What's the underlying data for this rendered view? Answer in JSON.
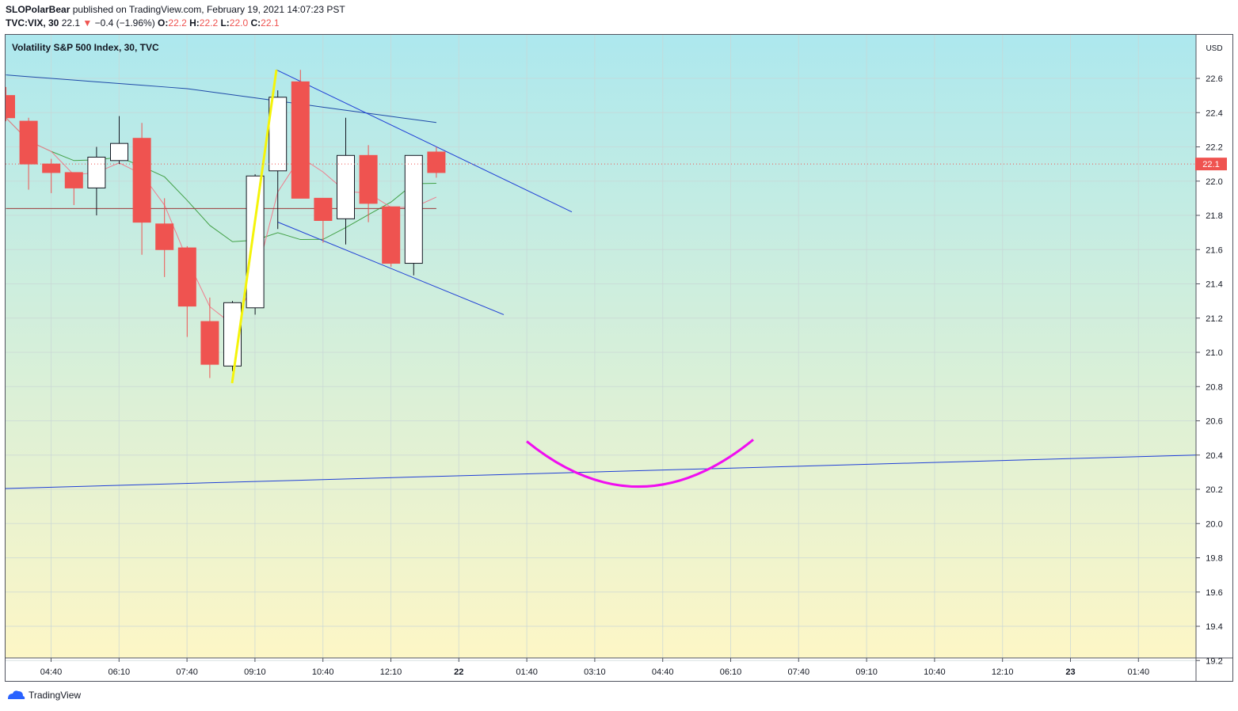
{
  "header": {
    "author": "SLOPolarBear",
    "published_text": "published on TradingView.com, February 19, 2021 14:07:23 PST",
    "symbol": "TVC:VIX, 30",
    "last": "22.1",
    "change": "−0.4 (−1.96%)",
    "o_label": "O:",
    "o": "22.2",
    "h_label": "H:",
    "h": "22.2",
    "l_label": "L:",
    "l": "22.0",
    "c_label": "C:",
    "c": "22.1"
  },
  "chart_title": "Volatility S&P 500 Index, 30, TVC",
  "currency": "USD",
  "last_price_label": "22.1",
  "footer": {
    "brand": "TradingView"
  },
  "colors": {
    "bg_top": "#ade8ee",
    "bg_bottom": "#fdf6c6",
    "down": "#ef5350",
    "up_body": "#ffffff",
    "wick": "#131722",
    "channel": "#1f3fd6",
    "yellow": "#f4f40a",
    "magenta": "#f00ef0",
    "ma_blue": "#1f4aa8",
    "ma_green": "#43a047",
    "ma_pink": "#ef7d8d",
    "ma_dark": "#9c3a3a"
  },
  "chart_data": {
    "type": "candlestick",
    "title": "Volatility S&P 500 Index, 30, TVC",
    "y_axis": {
      "min": 19.0,
      "max": 22.8,
      "ticks": [
        19.2,
        19.4,
        19.6,
        19.8,
        20.0,
        20.2,
        20.4,
        20.6,
        20.8,
        21.0,
        21.2,
        21.4,
        21.6,
        21.8,
        22.0,
        22.2,
        22.4,
        22.6
      ]
    },
    "x_labels": [
      "04:40",
      "06:10",
      "07:40",
      "09:10",
      "10:40",
      "12:10",
      "22",
      "01:40",
      "03:10",
      "04:40",
      "06:10",
      "07:40",
      "09:10",
      "10:40",
      "12:10",
      "23",
      "01:40"
    ],
    "candles": [
      {
        "o": 22.5,
        "h": 22.55,
        "l": 22.35,
        "c": 22.37
      },
      {
        "o": 22.35,
        "h": 22.37,
        "l": 21.95,
        "c": 22.1
      },
      {
        "o": 22.1,
        "h": 22.13,
        "l": 21.93,
        "c": 22.05
      },
      {
        "o": 22.05,
        "h": 22.05,
        "l": 21.86,
        "c": 21.96
      },
      {
        "o": 21.96,
        "h": 22.2,
        "l": 21.8,
        "c": 22.14
      },
      {
        "o": 22.12,
        "h": 22.38,
        "l": 22.1,
        "c": 22.22
      },
      {
        "o": 22.25,
        "h": 22.34,
        "l": 21.57,
        "c": 21.76
      },
      {
        "o": 21.75,
        "h": 21.9,
        "l": 21.44,
        "c": 21.6
      },
      {
        "o": 21.61,
        "h": 21.62,
        "l": 21.09,
        "c": 21.27
      },
      {
        "o": 21.18,
        "h": 21.32,
        "l": 20.85,
        "c": 20.93
      },
      {
        "o": 20.92,
        "h": 21.3,
        "l": 20.89,
        "c": 21.29
      },
      {
        "o": 21.26,
        "h": 22.04,
        "l": 21.22,
        "c": 22.03
      },
      {
        "o": 22.06,
        "h": 22.53,
        "l": 21.72,
        "c": 22.49
      },
      {
        "o": 22.58,
        "h": 22.65,
        "l": 21.9,
        "c": 21.9
      },
      {
        "o": 21.9,
        "h": 21.9,
        "l": 21.64,
        "c": 21.77
      },
      {
        "o": 21.78,
        "h": 22.37,
        "l": 21.63,
        "c": 22.15
      },
      {
        "o": 22.15,
        "h": 22.21,
        "l": 21.76,
        "c": 21.87
      },
      {
        "o": 21.85,
        "h": 21.85,
        "l": 21.5,
        "c": 21.52
      },
      {
        "o": 21.52,
        "h": 22.15,
        "l": 21.45,
        "c": 22.15
      },
      {
        "o": 22.17,
        "h": 22.2,
        "l": 22.02,
        "c": 22.05
      }
    ],
    "last_price": 22.1
  }
}
